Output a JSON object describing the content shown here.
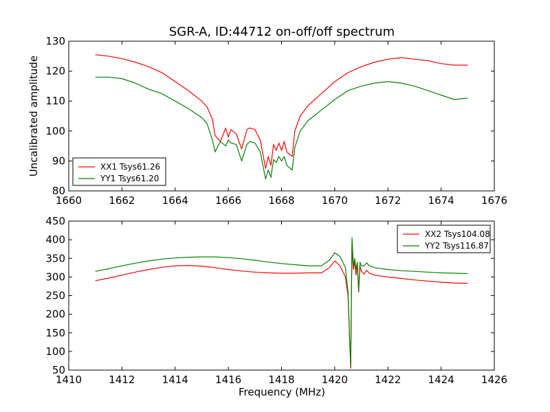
{
  "chart_data": [
    {
      "type": "line",
      "title": "SGR-A, ID:44712 on-off/off spectrum",
      "xlabel": "",
      "ylabel": "Uncalibrated amplitude",
      "xlim": [
        1660,
        1676
      ],
      "ylim": [
        80,
        130
      ],
      "xticks": [
        1660,
        1662,
        1664,
        1666,
        1668,
        1670,
        1672,
        1674,
        1676
      ],
      "yticks": [
        80,
        90,
        100,
        110,
        120,
        130
      ],
      "legend_position": "lower-left",
      "series": [
        {
          "name": "XX1 Tsys61.26",
          "color": "#ff0000",
          "x": [
            1661.0,
            1661.5,
            1662.0,
            1662.5,
            1663.0,
            1663.5,
            1664.0,
            1664.5,
            1665.0,
            1665.2,
            1665.4,
            1665.5,
            1665.7,
            1665.9,
            1666.0,
            1666.1,
            1666.3,
            1666.5,
            1666.7,
            1666.8,
            1667.0,
            1667.2,
            1667.4,
            1667.5,
            1667.6,
            1667.7,
            1667.8,
            1667.9,
            1668.0,
            1668.1,
            1668.2,
            1668.4,
            1668.5,
            1668.7,
            1669.0,
            1669.5,
            1670.0,
            1670.5,
            1671.0,
            1671.5,
            1672.0,
            1672.5,
            1673.0,
            1673.5,
            1674.0,
            1674.5,
            1675.0
          ],
          "y": [
            125.5,
            125.0,
            124.2,
            123.0,
            121.5,
            119.5,
            116.5,
            113.5,
            110.0,
            108.0,
            104.0,
            98.5,
            96.5,
            101.0,
            98.0,
            100.5,
            99.0,
            94.0,
            100.5,
            101.0,
            100.5,
            97.0,
            87.5,
            91.5,
            88.5,
            95.5,
            93.5,
            96.0,
            93.5,
            96.5,
            93.0,
            91.5,
            100.0,
            105.0,
            108.5,
            112.5,
            116.5,
            119.5,
            121.5,
            123.0,
            124.0,
            124.5,
            124.0,
            123.5,
            122.5,
            122.0,
            122.0
          ]
        },
        {
          "name": "YY1 Tsys61.20",
          "color": "#008000",
          "x": [
            1661.0,
            1661.5,
            1662.0,
            1662.5,
            1663.0,
            1663.5,
            1664.0,
            1664.5,
            1665.0,
            1665.2,
            1665.4,
            1665.5,
            1665.7,
            1665.9,
            1666.0,
            1666.1,
            1666.3,
            1666.5,
            1666.7,
            1666.8,
            1667.0,
            1667.2,
            1667.4,
            1667.5,
            1667.6,
            1667.7,
            1667.8,
            1667.9,
            1668.0,
            1668.1,
            1668.2,
            1668.4,
            1668.5,
            1668.7,
            1669.0,
            1669.5,
            1670.0,
            1670.5,
            1671.0,
            1671.5,
            1672.0,
            1672.5,
            1673.0,
            1673.5,
            1674.0,
            1674.5,
            1675.0
          ],
          "y": [
            118.0,
            118.0,
            117.5,
            116.0,
            114.0,
            112.5,
            110.0,
            107.5,
            104.5,
            102.5,
            97.0,
            93.0,
            96.5,
            95.0,
            97.0,
            96.0,
            95.5,
            90.0,
            95.5,
            96.5,
            96.0,
            93.0,
            84.0,
            87.0,
            84.5,
            90.5,
            89.5,
            91.5,
            90.0,
            91.5,
            88.5,
            87.0,
            94.5,
            100.0,
            103.5,
            107.0,
            110.5,
            113.5,
            115.0,
            116.0,
            116.5,
            116.0,
            115.0,
            113.5,
            112.0,
            110.5,
            111.0
          ]
        }
      ]
    },
    {
      "type": "line",
      "title": "",
      "xlabel": "Frequency (MHz)",
      "ylabel": "",
      "xlim": [
        1410,
        1426
      ],
      "ylim": [
        50,
        450
      ],
      "xticks": [
        1410,
        1412,
        1414,
        1416,
        1418,
        1420,
        1422,
        1424,
        1426
      ],
      "yticks": [
        50,
        100,
        150,
        200,
        250,
        300,
        350,
        400,
        450
      ],
      "legend_position": "upper-right",
      "series": [
        {
          "name": "XX2 Tsys104.08",
          "color": "#ff0000",
          "x": [
            1411.0,
            1411.5,
            1412.0,
            1412.5,
            1413.0,
            1413.5,
            1414.0,
            1414.5,
            1415.0,
            1415.5,
            1416.0,
            1416.5,
            1417.0,
            1417.5,
            1418.0,
            1418.5,
            1419.0,
            1419.5,
            1419.8,
            1420.0,
            1420.2,
            1420.4,
            1420.5,
            1420.6,
            1420.65,
            1420.7,
            1420.75,
            1420.8,
            1420.85,
            1420.9,
            1420.95,
            1421.0,
            1421.1,
            1421.2,
            1421.3,
            1421.5,
            1422.0,
            1422.5,
            1423.0,
            1423.5,
            1424.0,
            1424.5,
            1425.0
          ],
          "y": [
            290,
            297,
            305,
            313,
            320,
            326,
            330,
            331,
            329,
            325,
            320,
            316,
            313,
            311,
            310,
            310,
            311,
            311,
            325,
            343,
            330,
            300,
            250,
            55,
            390,
            320,
            340,
            305,
            330,
            260,
            330,
            315,
            308,
            318,
            310,
            305,
            300,
            296,
            292,
            289,
            286,
            284,
            283
          ]
        },
        {
          "name": "YY2 Tsys116.87",
          "color": "#008000",
          "x": [
            1411.0,
            1411.5,
            1412.0,
            1412.5,
            1413.0,
            1413.5,
            1414.0,
            1414.5,
            1415.0,
            1415.5,
            1416.0,
            1416.5,
            1417.0,
            1417.5,
            1418.0,
            1418.5,
            1419.0,
            1419.5,
            1419.8,
            1420.0,
            1420.2,
            1420.4,
            1420.5,
            1420.6,
            1420.65,
            1420.7,
            1420.75,
            1420.8,
            1420.85,
            1420.9,
            1420.95,
            1421.0,
            1421.1,
            1421.2,
            1421.3,
            1421.5,
            1422.0,
            1422.5,
            1423.0,
            1423.5,
            1424.0,
            1424.5,
            1425.0
          ],
          "y": [
            315,
            322,
            330,
            337,
            343,
            348,
            351,
            353,
            354,
            354,
            352,
            349,
            345,
            340,
            336,
            333,
            330,
            330,
            345,
            365,
            355,
            325,
            260,
            58,
            405,
            330,
            350,
            320,
            340,
            260,
            340,
            330,
            330,
            338,
            330,
            325,
            320,
            317,
            315,
            313,
            311,
            310,
            309
          ]
        }
      ]
    }
  ]
}
